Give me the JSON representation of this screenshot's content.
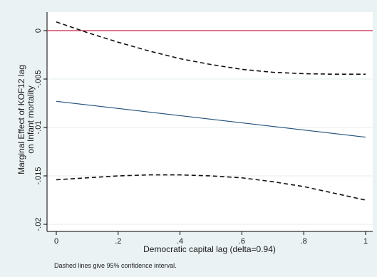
{
  "chart_data": {
    "type": "line",
    "xlabel": "Democratic capital lag (delta=0.94)",
    "ylabel_lines": [
      "Marginal Effect of KOF12 lag",
      "on Infant mortality"
    ],
    "note": "Dashed lines give 95% confidence interval.",
    "xlim": [
      0,
      1
    ],
    "ylim": [
      -0.02,
      0
    ],
    "x_ticks": [
      {
        "value": 0,
        "label": "0"
      },
      {
        "value": 0.2,
        "label": ".2"
      },
      {
        "value": 0.4,
        "label": ".4"
      },
      {
        "value": 0.6,
        "label": ".6"
      },
      {
        "value": 0.8,
        "label": ".8"
      },
      {
        "value": 1,
        "label": "1"
      }
    ],
    "y_ticks": [
      {
        "value": 0,
        "label": "0"
      },
      {
        "value": -0.005,
        "label": "-.005"
      },
      {
        "value": -0.01,
        "label": "-.01"
      },
      {
        "value": -0.015,
        "label": "-.015"
      },
      {
        "value": -0.02,
        "label": "-.02"
      }
    ],
    "grid": true,
    "series": [
      {
        "role": "marginal-effect",
        "style": "solid",
        "color": "#1f4e79",
        "x": [
          0,
          1
        ],
        "y": [
          -0.0073,
          -0.011
        ]
      },
      {
        "role": "upper-ci",
        "style": "dashed",
        "color": "#111111",
        "x": [
          0,
          0.1,
          0.2,
          0.3,
          0.4,
          0.5,
          0.6,
          0.7,
          0.8,
          0.9,
          1.0
        ],
        "y": [
          0.0009,
          -0.0002,
          -0.0012,
          -0.0021,
          -0.0029,
          -0.0035,
          -0.004,
          -0.0043,
          -0.00445,
          -0.0045,
          -0.0045
        ]
      },
      {
        "role": "lower-ci",
        "style": "dashed",
        "color": "#111111",
        "x": [
          0,
          0.1,
          0.2,
          0.3,
          0.4,
          0.5,
          0.6,
          0.7,
          0.8,
          0.9,
          1.0
        ],
        "y": [
          -0.0154,
          -0.0152,
          -0.015,
          -0.0149,
          -0.0149,
          -0.015,
          -0.0152,
          -0.0156,
          -0.0161,
          -0.0168,
          -0.0175
        ]
      }
    ],
    "reference_line": {
      "y": 0,
      "color": "#c8234d"
    }
  }
}
